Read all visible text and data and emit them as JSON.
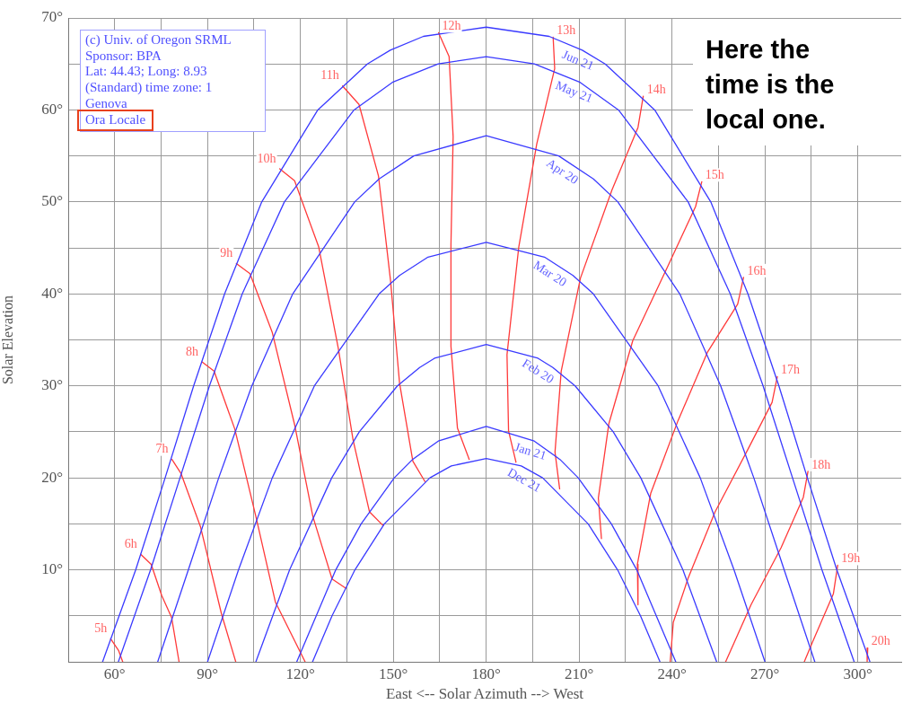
{
  "chart_data": {
    "type": "line",
    "xlabel": "East <-- Solar Azimuth --> West",
    "ylabel": "Solar Elevation",
    "xlim": [
      45,
      314
    ],
    "ylim": [
      0,
      70
    ],
    "xticks": [
      {
        "value": 45,
        "label": null
      },
      {
        "value": 60,
        "label": "60°"
      },
      {
        "value": 75,
        "label": null
      },
      {
        "value": 90,
        "label": "90°"
      },
      {
        "value": 105,
        "label": null
      },
      {
        "value": 120,
        "label": "120°"
      },
      {
        "value": 135,
        "label": null
      },
      {
        "value": 150,
        "label": "150°"
      },
      {
        "value": 165,
        "label": null
      },
      {
        "value": 180,
        "label": "180°"
      },
      {
        "value": 195,
        "label": null
      },
      {
        "value": 210,
        "label": "210°"
      },
      {
        "value": 225,
        "label": null
      },
      {
        "value": 240,
        "label": "240°"
      },
      {
        "value": 255,
        "label": null
      },
      {
        "value": 270,
        "label": "270°"
      },
      {
        "value": 285,
        "label": null
      },
      {
        "value": 300,
        "label": "300°"
      }
    ],
    "yticks": [
      {
        "value": 0,
        "label": null
      },
      {
        "value": 5,
        "label": null
      },
      {
        "value": 10,
        "label": "10°"
      },
      {
        "value": 15,
        "label": null
      },
      {
        "value": 20,
        "label": "20°"
      },
      {
        "value": 25,
        "label": null
      },
      {
        "value": 30,
        "label": "30°"
      },
      {
        "value": 35,
        "label": null
      },
      {
        "value": 40,
        "label": "40°"
      },
      {
        "value": 45,
        "label": null
      },
      {
        "value": 50,
        "label": "50°"
      },
      {
        "value": 55,
        "label": null
      },
      {
        "value": 60,
        "label": "60°"
      },
      {
        "value": 65,
        "label": null
      },
      {
        "value": 70,
        "label": "70°"
      }
    ],
    "grid": true,
    "legend": false,
    "marker": "none",
    "line_style": "solid",
    "annotations": [
      "(c) Univ. of Oregon SRML",
      "Sponsor: BPA",
      "Lat: 44.43; Long: 8.93",
      "(Standard) time zone: 1",
      "Genova",
      "Ora Locale",
      "Here the time is the local one."
    ],
    "series": [
      {
        "name": "Jun 21",
        "color": "#3a3aff",
        "x": [
          56.1,
          66.8,
          76.3,
          85.5,
          95.5,
          107.5,
          125.6,
          141.6,
          149,
          159.7,
          180,
          200.3,
          211,
          218.4,
          234.4,
          252.5,
          264.5,
          274.5,
          283.7,
          293.2,
          303.9
        ],
        "values": [
          0,
          10,
          20,
          30,
          40,
          50,
          60,
          65,
          66.5,
          68,
          69.0,
          68,
          66.5,
          65,
          60,
          50,
          40,
          30,
          20,
          10,
          0
        ]
      },
      {
        "name": "May 21",
        "color": "#3a3aff",
        "x": [
          61.2,
          71.6,
          81.1,
          90.6,
          101.2,
          114.8,
          137.3,
          149.7,
          164.5,
          180,
          195.5,
          210.3,
          222.7,
          245.2,
          258.8,
          269.4,
          278.9,
          288.4,
          298.8
        ],
        "values": [
          0,
          10,
          20,
          30,
          40,
          50,
          60,
          63,
          65,
          65.8,
          65,
          63,
          60,
          50,
          40,
          30,
          20,
          10,
          0
        ]
      },
      {
        "name": "Apr 20",
        "color": "#3a3aff",
        "x": [
          73.9,
          83.8,
          93.6,
          104.3,
          117.5,
          137.5,
          145.4,
          156.6,
          180,
          203.4,
          214.6,
          222.5,
          242.5,
          255.7,
          266.4,
          276.2,
          286.1
        ],
        "values": [
          0,
          10,
          20,
          30,
          40,
          50,
          52.5,
          55,
          57.2,
          55,
          52.5,
          50,
          40,
          30,
          20,
          10,
          0
        ]
      },
      {
        "name": "Mar 20",
        "color": "#3a3aff",
        "x": [
          90,
          100,
          110.9,
          124.5,
          145.4,
          152,
          161.2,
          180,
          198.8,
          208,
          214.6,
          235.5,
          249.1,
          260,
          270
        ],
        "values": [
          0,
          10,
          20,
          30,
          40,
          42,
          44,
          45.6,
          44,
          42,
          40,
          30,
          20,
          10,
          0
        ]
      },
      {
        "name": "Feb 20",
        "color": "#3a3aff",
        "x": [
          105.6,
          116.5,
          130.1,
          139,
          151.3,
          158.5,
          163.3,
          180,
          196.7,
          201.5,
          208.7,
          221,
          229.9,
          243.5,
          254.4
        ],
        "values": [
          0,
          10,
          20,
          25,
          30,
          32,
          33,
          34.5,
          33,
          32,
          30,
          25,
          20,
          10,
          0
        ]
      },
      {
        "name": "Jan 21",
        "color": "#3a3aff",
        "x": [
          118.8,
          131.4,
          139.6,
          150.3,
          156.2,
          164.5,
          180,
          195.5,
          203.8,
          209.7,
          220.4,
          228.6,
          241.2
        ],
        "values": [
          0,
          10,
          15,
          20,
          22,
          24,
          25.6,
          24,
          22,
          20,
          15,
          10,
          0
        ]
      },
      {
        "name": "Dec 21",
        "color": "#3a3aff",
        "x": [
          123.9,
          130.2,
          137.6,
          147.1,
          161.8,
          168.7,
          180,
          191.3,
          198.2,
          212.9,
          222.4,
          229.8,
          236.1
        ],
        "values": [
          0,
          5,
          10,
          15,
          20,
          21.3,
          22.1,
          21.3,
          20,
          15,
          10,
          5,
          0
        ]
      },
      {
        "name": "5h",
        "color": "#ff3a3a",
        "x": [
          58.7,
          61.3,
          62.6
        ],
        "values": [
          2.5,
          1.2,
          0
        ]
      },
      {
        "name": "6h",
        "color": "#ff3a3a",
        "x": [
          68.4,
          71.8,
          75.2,
          78.4,
          80.8
        ],
        "values": [
          11.7,
          10.6,
          7.2,
          4.8,
          0
        ]
      },
      {
        "name": "7h",
        "color": "#ff3a3a",
        "x": [
          78.5,
          81.4,
          87.7,
          94.5,
          99.1
        ],
        "values": [
          22.0,
          20.5,
          14.7,
          5.2,
          0
        ]
      },
      {
        "name": "8h",
        "color": "#ff3a3a",
        "x": [
          88.2,
          92.1,
          98.8,
          105.6,
          111.9,
          121.5
        ],
        "values": [
          32.6,
          31.6,
          25.3,
          15.8,
          6.5,
          0
        ]
      },
      {
        "name": "9h",
        "color": "#ff3a3a",
        "x": [
          99.3,
          103.7,
          110.9,
          118.1,
          124,
          130.2,
          134.6
        ],
        "values": [
          43.3,
          42.2,
          35.8,
          25.8,
          15.8,
          9.0,
          8.0
        ]
      },
      {
        "name": "10h",
        "color": "#ff3a3a",
        "x": [
          113.3,
          118.1,
          125.9,
          132.2,
          137,
          142.3,
          146.7
        ],
        "values": [
          53.6,
          52.3,
          45.1,
          34.1,
          24.1,
          16.3,
          14.8
        ]
      },
      {
        "name": "11h",
        "color": "#ff3a3a",
        "x": [
          133.6,
          138.9,
          145.2,
          149.1,
          152,
          156.3,
          160.2
        ],
        "values": [
          62.6,
          60.6,
          52.8,
          41.4,
          30.3,
          21.8,
          19.6
        ]
      },
      {
        "name": "12h",
        "color": "#ff3a3a",
        "x": [
          164.6,
          168,
          169.3,
          168.6,
          168.6,
          170.7,
          174.5
        ],
        "values": [
          68.4,
          65.8,
          57.1,
          45.4,
          34.3,
          25.4,
          22.0
        ]
      },
      {
        "name": "13h",
        "color": "#ff3a3a",
        "x": [
          201.6,
          202.1,
          196.3,
          190.5,
          186.7,
          187.2,
          189.6
        ],
        "values": [
          67.9,
          64.5,
          56.3,
          45.1,
          33.4,
          25.1,
          21.7
        ]
      },
      {
        "name": "14h",
        "color": "#ff3a3a",
        "x": [
          230.7,
          229,
          220.6,
          210.4,
          204.2,
          202.2,
          203.7
        ],
        "values": [
          61.5,
          58.1,
          51.3,
          41.7,
          31.6,
          22.8,
          18.8
        ]
      },
      {
        "name": "15h",
        "color": "#ff3a3a",
        "x": [
          249.6,
          247.6,
          238.9,
          227.3,
          219.6,
          216.2,
          217.2
        ],
        "values": [
          52.2,
          49.5,
          43.2,
          34.9,
          25.9,
          17.8,
          13.4
        ]
      },
      {
        "name": "16h",
        "color": "#ff3a3a",
        "x": [
          263.1,
          261.2,
          251.5,
          241.9,
          233.1,
          228.8,
          229
        ],
        "values": [
          41.8,
          38.9,
          33.7,
          26.2,
          18.3,
          10.6,
          6.2
        ]
      },
      {
        "name": "17h",
        "color": "#ff3a3a",
        "x": [
          274,
          272.3,
          264.5,
          253.9,
          245.2,
          240.4,
          239.4
        ],
        "values": [
          31.0,
          28.2,
          23.1,
          16.3,
          9.1,
          4.3,
          0
        ]
      },
      {
        "name": "18h",
        "color": "#ff3a3a",
        "x": [
          283.9,
          282.4,
          275.2,
          265.5,
          257.3
        ],
        "values": [
          20.7,
          17.9,
          12.4,
          6.2,
          0
        ]
      },
      {
        "name": "19h",
        "color": "#ff3a3a",
        "x": [
          293.5,
          292.1,
          285.3,
          282.7
        ],
        "values": [
          10.5,
          7.4,
          2.1,
          0
        ]
      },
      {
        "name": "20h",
        "color": "#ff3a3a",
        "x": [
          303.2,
          303
        ],
        "values": [
          1.5,
          0
        ]
      }
    ]
  }
}
